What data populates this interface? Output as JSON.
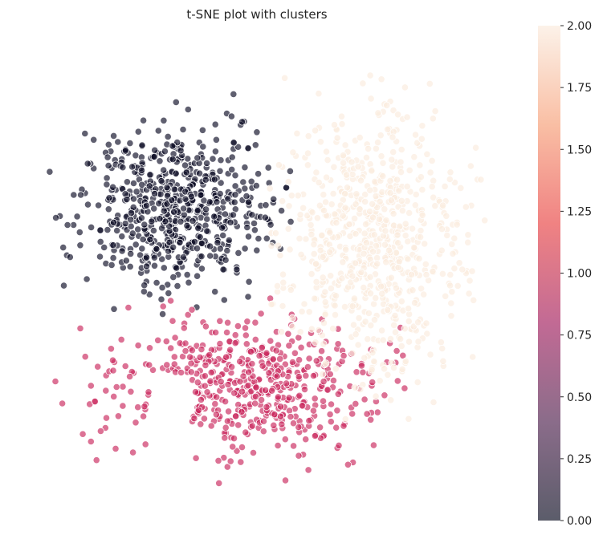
{
  "chart_data": {
    "type": "scatter",
    "title": "t-SNE plot with clusters",
    "xlabel": "",
    "ylabel": "",
    "grid": false,
    "colorbar": {
      "min": 0.0,
      "max": 2.0,
      "ticks": [
        "0.00",
        "0.25",
        "0.50",
        "0.75",
        "1.00",
        "1.25",
        "1.50",
        "1.75",
        "2.00"
      ],
      "colors": [
        "#03051a",
        "#4c1d4b",
        "#a11a5b",
        "#e83f3f",
        "#f69c73",
        "#faebdd"
      ]
    },
    "series": [
      {
        "cluster": 0,
        "color": "#0b0a24",
        "approx_center": [
          0.33,
          0.36
        ],
        "approx_spread": [
          0.19,
          0.17
        ]
      },
      {
        "cluster": 1,
        "color": "#c9275c",
        "approx_center": [
          0.47,
          0.75
        ],
        "approx_spread": [
          0.27,
          0.13
        ]
      },
      {
        "cluster": 2,
        "color": "#faebdd",
        "approx_center": [
          0.74,
          0.43
        ],
        "approx_spread": [
          0.18,
          0.27
        ]
      }
    ]
  }
}
